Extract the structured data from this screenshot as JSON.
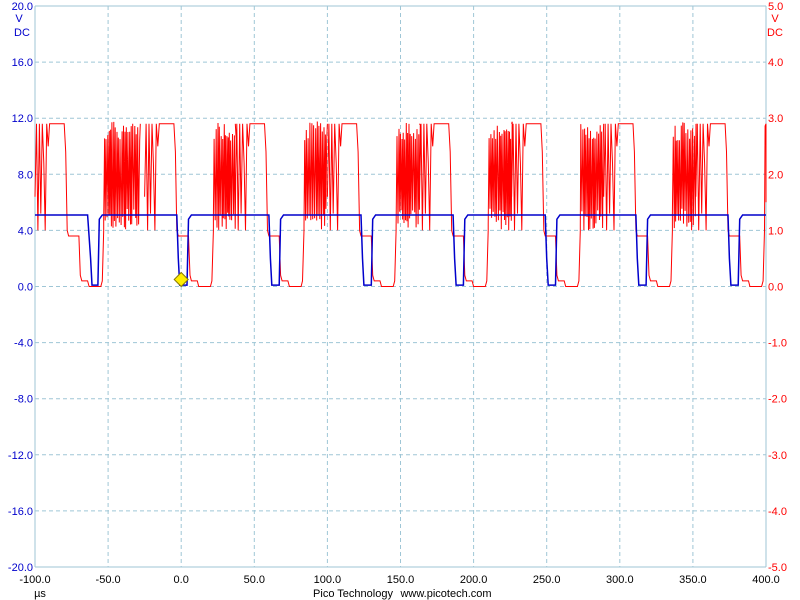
{
  "colors": {
    "channel_a": "#0000cc",
    "channel_b": "#ff0000",
    "grid": "#9fc6d6",
    "trigger_marker": "#ffee00"
  },
  "axes": {
    "left": {
      "unit_line1": "V",
      "unit_line2": "DC"
    },
    "right": {
      "unit_line1": "V",
      "unit_line2": "DC"
    },
    "x": {
      "unit": "µs"
    }
  },
  "footer": {
    "brand": "Pico Technology",
    "website": "www.picotech.com"
  },
  "chart_data": {
    "type": "line",
    "grid": true,
    "xlim": [
      -100,
      400
    ],
    "x_ticks": [
      "-100.0",
      "-50.0",
      "0.0",
      "50.0",
      "100.0",
      "150.0",
      "200.0",
      "250.0",
      "300.0",
      "350.0",
      "400.0"
    ],
    "y_left": {
      "ylim": [
        -20,
        20
      ],
      "ticks": [
        "20.0",
        "16.0",
        "12.0",
        "8.0",
        "4.0",
        "0.0",
        "-4.0",
        "-8.0",
        "-12.0",
        "-16.0",
        "-20.0"
      ]
    },
    "y_right": {
      "ylim": [
        -5,
        5
      ],
      "ticks": [
        "5.0",
        "4.0",
        "3.0",
        "2.0",
        "1.0",
        "0.0",
        "-1.0",
        "-2.0",
        "-3.0",
        "-4.0",
        "-5.0"
      ]
    },
    "trigger": {
      "x": 0,
      "y": 0.5
    },
    "series": [
      {
        "axis": "left",
        "points": [
          [
            -100,
            5.1
          ],
          [
            -64,
            5.1
          ],
          [
            -62,
            2.0
          ],
          [
            -61,
            0.1
          ],
          [
            -57,
            0.1
          ],
          [
            -56,
            4.8
          ],
          [
            -54,
            5.1
          ],
          [
            -3,
            5.1
          ],
          [
            -2,
            2.0
          ],
          [
            -1,
            0.1
          ],
          [
            4,
            0.1
          ],
          [
            5,
            4.8
          ],
          [
            7,
            5.1
          ],
          [
            60,
            5.1
          ],
          [
            61,
            2.0
          ],
          [
            62,
            0.1
          ],
          [
            67,
            0.1
          ],
          [
            68,
            4.8
          ],
          [
            70,
            5.1
          ],
          [
            123,
            5.1
          ],
          [
            124,
            2.0
          ],
          [
            125,
            0.1
          ],
          [
            130,
            0.1
          ],
          [
            131,
            4.8
          ],
          [
            133,
            5.1
          ],
          [
            186,
            5.1
          ],
          [
            187,
            2.0
          ],
          [
            188,
            0.1
          ],
          [
            193,
            0.1
          ],
          [
            194,
            4.8
          ],
          [
            196,
            5.1
          ],
          [
            249,
            5.1
          ],
          [
            250,
            2.0
          ],
          [
            251,
            0.1
          ],
          [
            256,
            0.1
          ],
          [
            257,
            4.8
          ],
          [
            259,
            5.1
          ],
          [
            311,
            5.1
          ],
          [
            312,
            2.0
          ],
          [
            313,
            0.1
          ],
          [
            318,
            0.1
          ],
          [
            319,
            4.8
          ],
          [
            321,
            5.1
          ],
          [
            374,
            5.1
          ],
          [
            375,
            2.0
          ],
          [
            376,
            0.1
          ],
          [
            381,
            0.1
          ],
          [
            382,
            4.8
          ],
          [
            384,
            5.1
          ],
          [
            400,
            5.1
          ]
        ]
      },
      {
        "axis": "right",
        "bursts_start": [
          -100,
          -25,
          37,
          100,
          163,
          226,
          289,
          352
        ],
        "points": [
          [
            -100,
            1.6
          ],
          [
            -99,
            2.9
          ],
          [
            -98,
            1.0
          ],
          [
            -97,
            2.9
          ],
          [
            -96,
            1.3
          ],
          [
            -95,
            2.9
          ],
          [
            -94,
            2.2
          ],
          [
            -93,
            1.0
          ],
          [
            -92,
            2.9
          ],
          [
            -91,
            2.5
          ],
          [
            -90,
            2.9
          ],
          [
            -80,
            2.9
          ],
          [
            -79,
            2.4
          ],
          [
            -78,
            1.0
          ],
          [
            -77,
            0.9
          ],
          [
            -70,
            0.9
          ],
          [
            -69,
            0.2
          ],
          [
            -68,
            0.1
          ],
          [
            -64,
            0.1
          ],
          [
            -63,
            0.0
          ],
          [
            -55,
            0.0
          ],
          [
            -54,
            0.1
          ],
          [
            -53,
            1.0
          ]
        ]
      }
    ]
  }
}
